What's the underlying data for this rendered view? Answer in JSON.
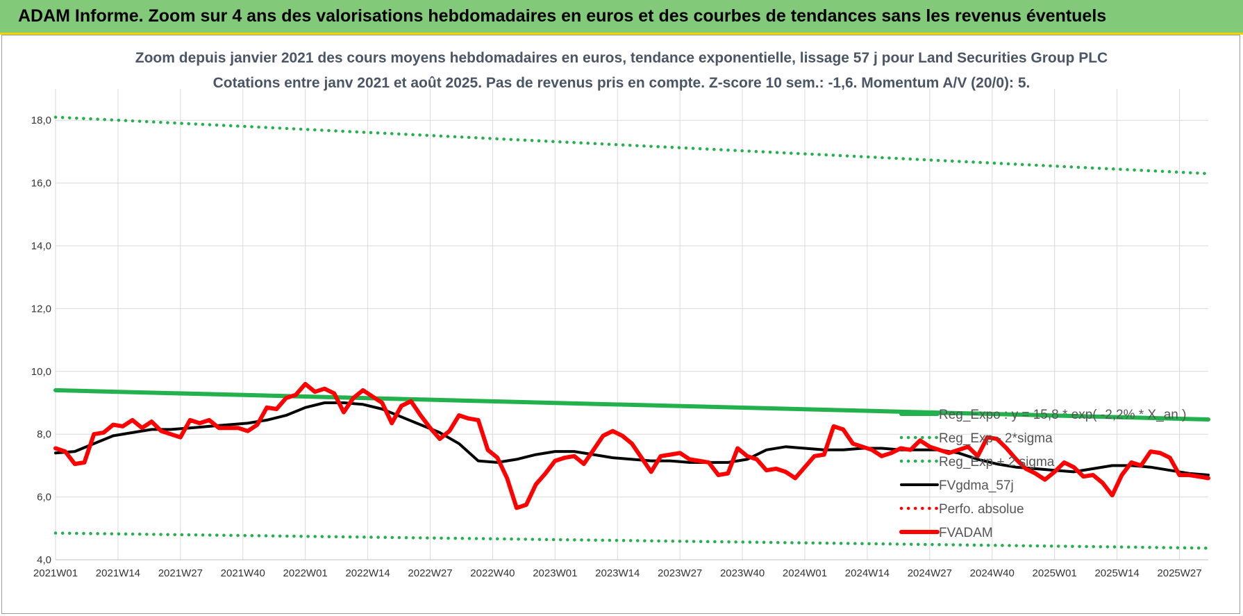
{
  "banner": {
    "title": "ADAM Informe. Zoom sur 4 ans des valorisations hebdomadaires en euros et des courbes de tendances sans les revenus éventuels",
    "color": "#82c97a"
  },
  "chart_data": {
    "type": "line",
    "title": "Zoom depuis janvier 2021 des cours moyens hebdomadaires en euros, tendance exponentielle, lissage 57 j pour Land Securities Group PLC",
    "subtitle": "Cotations entre janv 2021 et août 2025.  Pas de revenus pris en compte. Z-score 10 sem.: -1,6. Momentum A/V (20/0): 5.",
    "x_ticks": [
      "2021W01",
      "2021W14",
      "2021W27",
      "2021W40",
      "2022W01",
      "2022W14",
      "2022W27",
      "2022W40",
      "2023W01",
      "2023W14",
      "2023W27",
      "2023W40",
      "2024W01",
      "2024W14",
      "2024W27",
      "2024W40",
      "2025W01",
      "2025W14",
      "2025W27"
    ],
    "y_ticks": [
      "4,0",
      "6,0",
      "8,0",
      "10,0",
      "12,0",
      "14,0",
      "16,0",
      "18,0"
    ],
    "ylim": [
      4,
      19
    ],
    "x_range_weeks": [
      0,
      240
    ],
    "grid": true,
    "legend_position": "right",
    "series": [
      {
        "name": "Reg_Expo : y = 15,8 * exp( -2,2% * X_an )",
        "color": "#22b14c",
        "style": "solid-thick",
        "x": [
          0,
          240
        ],
        "y": [
          9.4,
          8.47
        ]
      },
      {
        "name": "Reg_Exp - 2*sigma",
        "color": "#22b14c",
        "style": "dotted",
        "x": [
          0,
          240
        ],
        "y": [
          4.85,
          4.37
        ]
      },
      {
        "name": "Reg_Exp + 2 sigma",
        "color": "#22b14c",
        "style": "dotted",
        "x": [
          0,
          240
        ],
        "y": [
          18.1,
          16.3
        ]
      },
      {
        "name": "FVgdma_57j",
        "color": "#000000",
        "style": "solid",
        "x": [
          0,
          4,
          8,
          12,
          16,
          20,
          24,
          28,
          32,
          36,
          40,
          44,
          48,
          52,
          56,
          60,
          64,
          68,
          72,
          76,
          80,
          84,
          88,
          92,
          96,
          100,
          104,
          108,
          112,
          116,
          120,
          124,
          128,
          132,
          136,
          140,
          144,
          148,
          152,
          156,
          160,
          164,
          168,
          172,
          176,
          180,
          184,
          188,
          192,
          196,
          200,
          204,
          208,
          212,
          216,
          220,
          224,
          228,
          232,
          236,
          240
        ],
        "y": [
          7.4,
          7.45,
          7.7,
          7.95,
          8.05,
          8.15,
          8.15,
          8.2,
          8.25,
          8.3,
          8.35,
          8.45,
          8.6,
          8.85,
          9.0,
          9.0,
          8.95,
          8.8,
          8.55,
          8.3,
          8.05,
          7.7,
          7.15,
          7.1,
          7.2,
          7.35,
          7.45,
          7.45,
          7.35,
          7.25,
          7.2,
          7.15,
          7.15,
          7.1,
          7.1,
          7.1,
          7.2,
          7.5,
          7.6,
          7.55,
          7.5,
          7.5,
          7.55,
          7.55,
          7.5,
          7.5,
          7.5,
          7.4,
          7.2,
          7.05,
          6.95,
          6.9,
          6.85,
          6.8,
          6.9,
          7.0,
          7.0,
          6.95,
          6.85,
          6.75,
          6.7
        ]
      },
      {
        "name": "Perfo. absolue",
        "color": "#ff0000",
        "style": "dotted",
        "x": [],
        "y": []
      },
      {
        "name": "FVADAM",
        "color": "#ff0000",
        "style": "solid-thick",
        "x": [
          0,
          2,
          4,
          6,
          8,
          10,
          12,
          14,
          16,
          18,
          20,
          22,
          24,
          26,
          28,
          30,
          32,
          34,
          36,
          38,
          40,
          42,
          44,
          46,
          48,
          50,
          52,
          54,
          56,
          58,
          60,
          62,
          64,
          66,
          68,
          70,
          72,
          74,
          76,
          78,
          80,
          82,
          84,
          86,
          88,
          90,
          92,
          94,
          96,
          98,
          100,
          102,
          104,
          106,
          108,
          110,
          112,
          114,
          116,
          118,
          120,
          122,
          124,
          126,
          128,
          130,
          132,
          134,
          136,
          138,
          140,
          142,
          144,
          146,
          148,
          150,
          152,
          154,
          156,
          158,
          160,
          162,
          164,
          166,
          168,
          170,
          172,
          174,
          176,
          178,
          180,
          182,
          184,
          186,
          188,
          190,
          192,
          194,
          196,
          198,
          200,
          202,
          204,
          206,
          208,
          210,
          212,
          214,
          216,
          218,
          220,
          222,
          224,
          226,
          228,
          230,
          232,
          234,
          236,
          238,
          240
        ],
        "y": [
          7.55,
          7.45,
          7.05,
          7.1,
          8.0,
          8.05,
          8.3,
          8.25,
          8.45,
          8.2,
          8.4,
          8.1,
          8.0,
          7.9,
          8.45,
          8.35,
          8.45,
          8.2,
          8.2,
          8.2,
          8.1,
          8.3,
          8.85,
          8.8,
          9.15,
          9.25,
          9.6,
          9.35,
          9.45,
          9.3,
          8.7,
          9.15,
          9.4,
          9.2,
          9.0,
          8.35,
          8.9,
          9.05,
          8.6,
          8.2,
          7.85,
          8.1,
          8.6,
          8.5,
          8.45,
          7.5,
          7.25,
          6.6,
          5.65,
          5.75,
          6.4,
          6.75,
          7.15,
          7.25,
          7.3,
          7.05,
          7.5,
          7.95,
          8.1,
          7.95,
          7.7,
          7.25,
          6.8,
          7.3,
          7.35,
          7.4,
          7.2,
          7.15,
          7.1,
          6.7,
          6.75,
          7.55,
          7.3,
          7.2,
          6.85,
          6.9,
          6.8,
          6.6,
          6.95,
          7.3,
          7.35,
          8.25,
          8.15,
          7.7,
          7.6,
          7.5,
          7.3,
          7.4,
          7.55,
          7.5,
          7.8,
          7.6,
          7.5,
          7.4,
          7.5,
          7.6,
          7.3,
          7.9,
          7.85,
          7.55,
          7.2,
          6.9,
          6.75,
          6.55,
          6.8,
          7.1,
          6.95,
          6.65,
          6.7,
          6.45,
          6.05,
          6.7,
          7.1,
          7.0,
          7.45,
          7.4,
          7.25,
          6.7,
          6.7,
          6.65,
          6.6
        ]
      }
    ]
  }
}
